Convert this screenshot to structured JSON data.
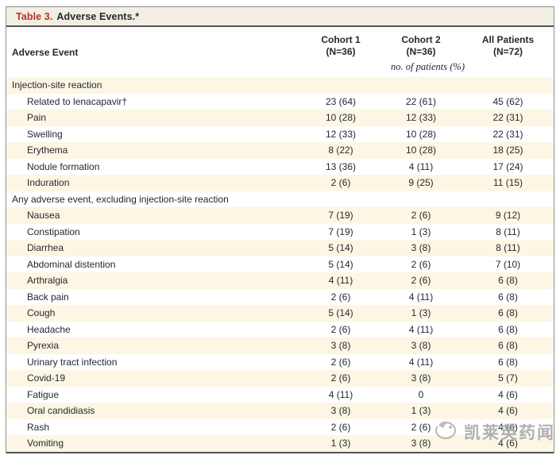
{
  "table": {
    "title_label": "Table 3.",
    "title_text": "Adverse Events.*",
    "row_header": "Adverse Event",
    "columns": [
      {
        "line1": "Cohort 1",
        "line2": "(N=36)"
      },
      {
        "line1": "Cohort 2",
        "line2": "(N=36)"
      },
      {
        "line1": "All Patients",
        "line2": "(N=72)"
      }
    ],
    "units_note": "no. of patients (%)",
    "rows": [
      {
        "label": "Injection-site reaction",
        "indent": 0,
        "values": [
          "",
          "",
          ""
        ]
      },
      {
        "label": "Related to lenacapavir†",
        "indent": 1,
        "values": [
          "23 (64)",
          "22 (61)",
          "45 (62)"
        ]
      },
      {
        "label": "Pain",
        "indent": 1,
        "values": [
          "10 (28)",
          "12 (33)",
          "22 (31)"
        ]
      },
      {
        "label": "Swelling",
        "indent": 1,
        "values": [
          "12 (33)",
          "10 (28)",
          "22 (31)"
        ]
      },
      {
        "label": "Erythema",
        "indent": 1,
        "values": [
          "8 (22)",
          "10 (28)",
          "18 (25)"
        ]
      },
      {
        "label": "Nodule formation",
        "indent": 1,
        "values": [
          "13 (36)",
          "4 (11)",
          "17 (24)"
        ]
      },
      {
        "label": "Induration",
        "indent": 1,
        "values": [
          "2 (6)",
          "9 (25)",
          "11 (15)"
        ]
      },
      {
        "label": "Any adverse event, excluding injection-site reaction",
        "indent": 0,
        "values": [
          "",
          "",
          ""
        ]
      },
      {
        "label": "Nausea",
        "indent": 1,
        "values": [
          "7 (19)",
          "2 (6)",
          "9 (12)"
        ]
      },
      {
        "label": "Constipation",
        "indent": 1,
        "values": [
          "7 (19)",
          "1 (3)",
          "8 (11)"
        ]
      },
      {
        "label": "Diarrhea",
        "indent": 1,
        "values": [
          "5 (14)",
          "3 (8)",
          "8 (11)"
        ]
      },
      {
        "label": "Abdominal distention",
        "indent": 1,
        "values": [
          "5 (14)",
          "2 (6)",
          "7 (10)"
        ]
      },
      {
        "label": "Arthralgia",
        "indent": 1,
        "values": [
          "4 (11)",
          "2 (6)",
          "6 (8)"
        ]
      },
      {
        "label": "Back pain",
        "indent": 1,
        "values": [
          "2 (6)",
          "4 (11)",
          "6 (8)"
        ]
      },
      {
        "label": "Cough",
        "indent": 1,
        "values": [
          "5 (14)",
          "1 (3)",
          "6 (8)"
        ]
      },
      {
        "label": "Headache",
        "indent": 1,
        "values": [
          "2 (6)",
          "4 (11)",
          "6 (8)"
        ]
      },
      {
        "label": "Pyrexia",
        "indent": 1,
        "values": [
          "3 (8)",
          "3 (8)",
          "6 (8)"
        ]
      },
      {
        "label": "Urinary tract infection",
        "indent": 1,
        "values": [
          "2 (6)",
          "4 (11)",
          "6 (8)"
        ]
      },
      {
        "label": "Covid-19",
        "indent": 1,
        "values": [
          "2 (6)",
          "3 (8)",
          "5 (7)"
        ]
      },
      {
        "label": "Fatigue",
        "indent": 1,
        "values": [
          "4 (11)",
          "0",
          "4 (6)"
        ]
      },
      {
        "label": "Oral candidiasis",
        "indent": 1,
        "values": [
          "3 (8)",
          "1 (3)",
          "4 (6)"
        ]
      },
      {
        "label": "Rash",
        "indent": 1,
        "values": [
          "2 (6)",
          "2 (6)",
          "4 (6)"
        ]
      },
      {
        "label": "Vomiting",
        "indent": 1,
        "values": [
          "1 (3)",
          "3 (8)",
          "4 (6)"
        ]
      }
    ]
  },
  "watermark": {
    "text": "凯莱英药闻"
  },
  "colors": {
    "title_bar_bg": "#f2eee3",
    "stripe_bg": "#fdf6e4",
    "title_red": "#b43328",
    "text": "#26282e",
    "heavy_rule": "#54555a",
    "outer_border": "#8f8f8f",
    "watermark_gray": "#a3a3a3"
  }
}
